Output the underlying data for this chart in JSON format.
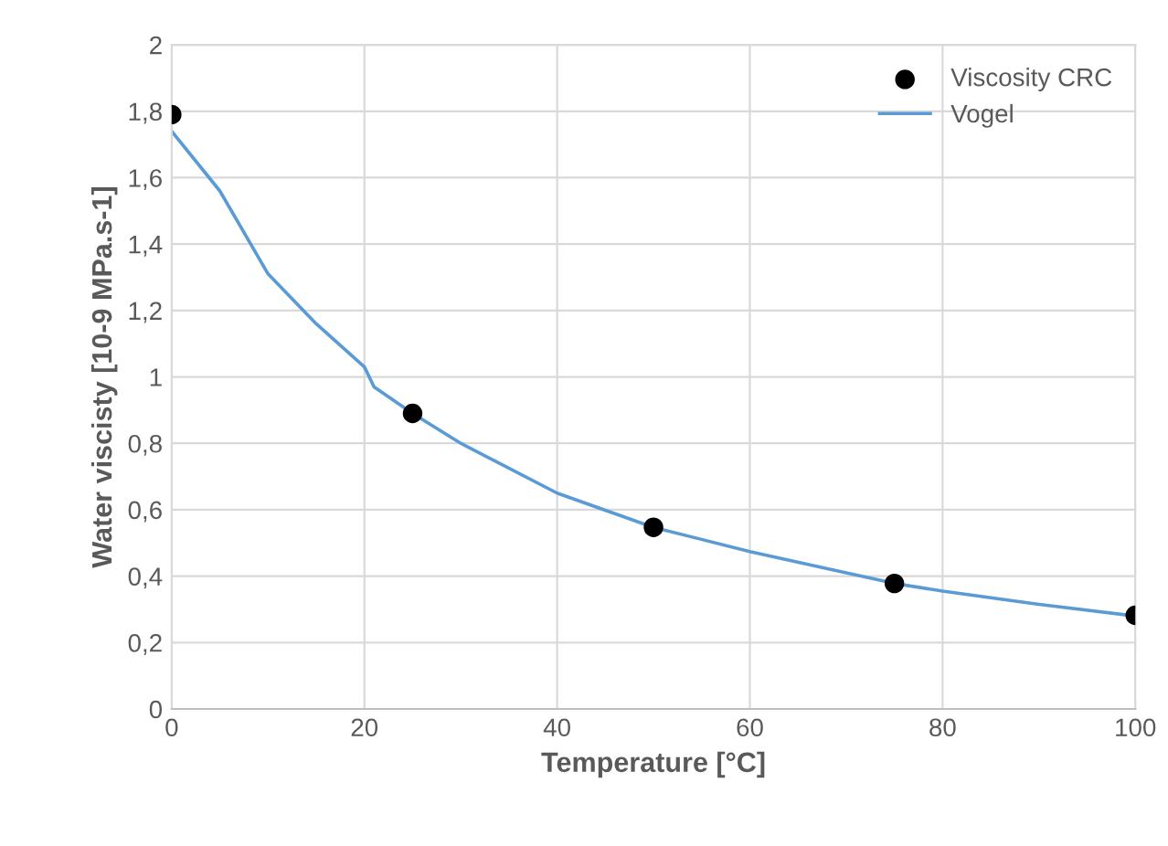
{
  "chart_data": {
    "type": "scatter",
    "xlabel": "Temperature [°C]",
    "ylabel": "Water viscisty [10-9 MPa.s-1]",
    "xlim": [
      0,
      100
    ],
    "xticks": [
      0,
      20,
      40,
      60,
      80,
      100
    ],
    "ylim": [
      0,
      2
    ],
    "yticks": [
      0,
      {
        "value": 0.2,
        "label": "0,2"
      },
      {
        "value": 0.4,
        "label": "0,4"
      },
      {
        "value": 0.6,
        "label": "0,6"
      },
      {
        "value": 0.8,
        "label": "0,8"
      },
      1,
      {
        "value": 1.2,
        "label": "1,2"
      },
      {
        "value": 1.4,
        "label": "1,4"
      },
      {
        "value": 1.6,
        "label": "1,6"
      },
      {
        "value": 1.8,
        "label": "1,8"
      },
      2
    ],
    "grid": true,
    "legend": "top right",
    "series": [
      {
        "name": "Viscosity CRC",
        "color": "#000000",
        "marker": "circle",
        "x": [
          0,
          25,
          50,
          75,
          100
        ],
        "values": [
          1.79,
          0.89,
          0.547,
          0.378,
          0.282
        ]
      },
      {
        "name": "Vogel",
        "type": "line",
        "color": "#5b9bd5",
        "marker": "none",
        "x": [
          0,
          5,
          10,
          15,
          20,
          21,
          25,
          30,
          40,
          50,
          60,
          70,
          75,
          80,
          90,
          100
        ],
        "values": [
          1.74,
          1.56,
          1.31,
          1.16,
          1.03,
          0.97,
          0.89,
          0.8,
          0.65,
          0.547,
          0.474,
          0.41,
          0.378,
          0.355,
          0.315,
          0.28
        ]
      }
    ]
  }
}
